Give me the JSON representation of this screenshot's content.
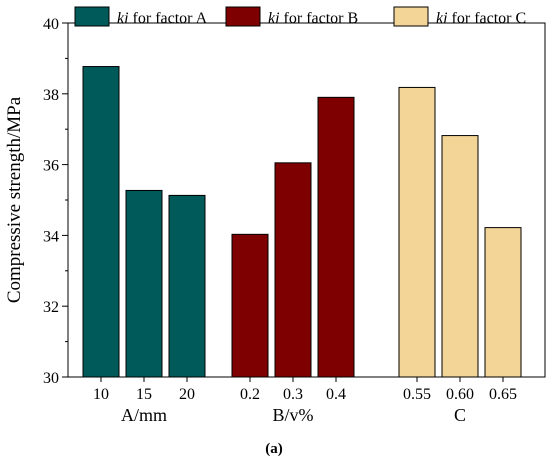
{
  "chart_data": {
    "type": "bar",
    "ylabel": "Compressive strength/MPa",
    "ylim": [
      30,
      40
    ],
    "yticks": [
      30,
      32,
      34,
      36,
      38,
      40
    ],
    "grid": false,
    "legend_placement": "top",
    "caption": "(a)",
    "groups": [
      {
        "xlabel": "A/mm",
        "legend_label_italic": "ki",
        "legend_label_rest": " for factor A",
        "color": "#005a5a",
        "categories": [
          "10",
          "15",
          "20"
        ],
        "values": [
          38.77,
          35.27,
          35.13
        ]
      },
      {
        "xlabel": "B/v%",
        "legend_label_italic": "ki",
        "legend_label_rest": " for factor B",
        "color": "#7f0000",
        "categories": [
          "0.2",
          "0.3",
          "0.4"
        ],
        "values": [
          34.03,
          36.05,
          37.9
        ]
      },
      {
        "xlabel": "C",
        "legend_label_italic": "ki",
        "legend_label_rest": " for factor C",
        "color": "#f2d597",
        "categories": [
          "0.55",
          "0.60",
          "0.65"
        ],
        "values": [
          38.18,
          36.82,
          34.22
        ]
      }
    ]
  }
}
